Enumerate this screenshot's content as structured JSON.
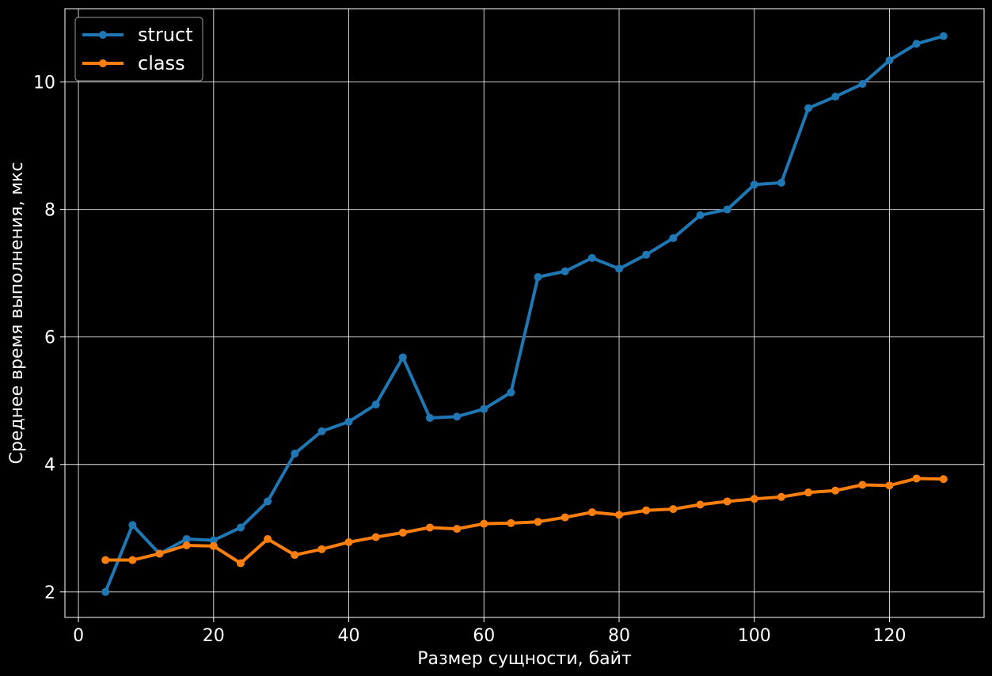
{
  "chart_data": {
    "type": "line",
    "title": "",
    "xlabel": "Размер сущности, байт",
    "ylabel": "Среднее время выполнения, мкс",
    "xlim": [
      -2,
      134
    ],
    "ylim": [
      1.6,
      11.15
    ],
    "xticks": [
      0,
      20,
      40,
      60,
      80,
      100,
      120
    ],
    "yticks": [
      2,
      4,
      6,
      8,
      10
    ],
    "grid": true,
    "legend": "top-left",
    "background": "#000000",
    "x": [
      4,
      8,
      12,
      16,
      20,
      24,
      28,
      32,
      36,
      40,
      44,
      48,
      52,
      56,
      60,
      64,
      68,
      72,
      76,
      80,
      84,
      88,
      92,
      96,
      100,
      104,
      108,
      112,
      116,
      120,
      124,
      128
    ],
    "series": [
      {
        "name": "struct",
        "color": "#1f77b4",
        "values": [
          2.0,
          3.05,
          2.6,
          2.83,
          2.81,
          3.01,
          3.42,
          4.17,
          4.52,
          4.67,
          4.94,
          5.68,
          4.73,
          4.75,
          4.87,
          5.13,
          6.94,
          7.03,
          7.24,
          7.07,
          7.29,
          7.55,
          7.91,
          8.0,
          8.39,
          8.42,
          9.59,
          9.77,
          9.97,
          10.34,
          10.6,
          10.72
        ]
      },
      {
        "name": "class",
        "color": "#ff7f0e",
        "values": [
          2.5,
          2.5,
          2.6,
          2.73,
          2.72,
          2.45,
          2.83,
          2.58,
          2.67,
          2.78,
          2.86,
          2.93,
          3.01,
          2.99,
          3.07,
          3.08,
          3.1,
          3.17,
          3.25,
          3.21,
          3.28,
          3.3,
          3.37,
          3.42,
          3.46,
          3.49,
          3.56,
          3.59,
          3.68,
          3.67,
          3.78,
          3.77
        ]
      }
    ]
  }
}
